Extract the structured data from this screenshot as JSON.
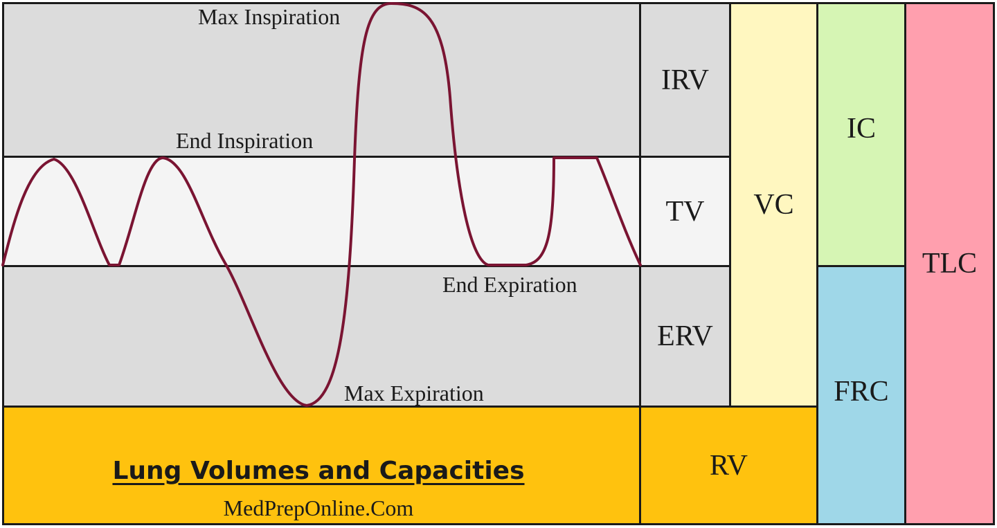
{
  "colors": {
    "grey_band": "#dcdcdc",
    "tidal_band": "#f4f4f4",
    "residual": "#ffc20e",
    "vc": "#fff7c0",
    "ic": "#d6f5b4",
    "frc": "#9fd7e8",
    "tlc": "#ff9fae",
    "trace": "#7a1432"
  },
  "annotations": {
    "max_inspiration": "Max Inspiration",
    "end_inspiration": "End Inspiration",
    "end_expiration": "End Expiration",
    "max_expiration": "Max Expiration"
  },
  "volumes": {
    "irv": "IRV",
    "tv": "TV",
    "erv": "ERV",
    "rv": "RV"
  },
  "capacities": {
    "vc": "VC",
    "ic": "IC",
    "frc": "FRC",
    "tlc": "TLC"
  },
  "footer": {
    "title": "Lung Volumes and Capacities",
    "site": "MedPrepOnline.Com"
  }
}
